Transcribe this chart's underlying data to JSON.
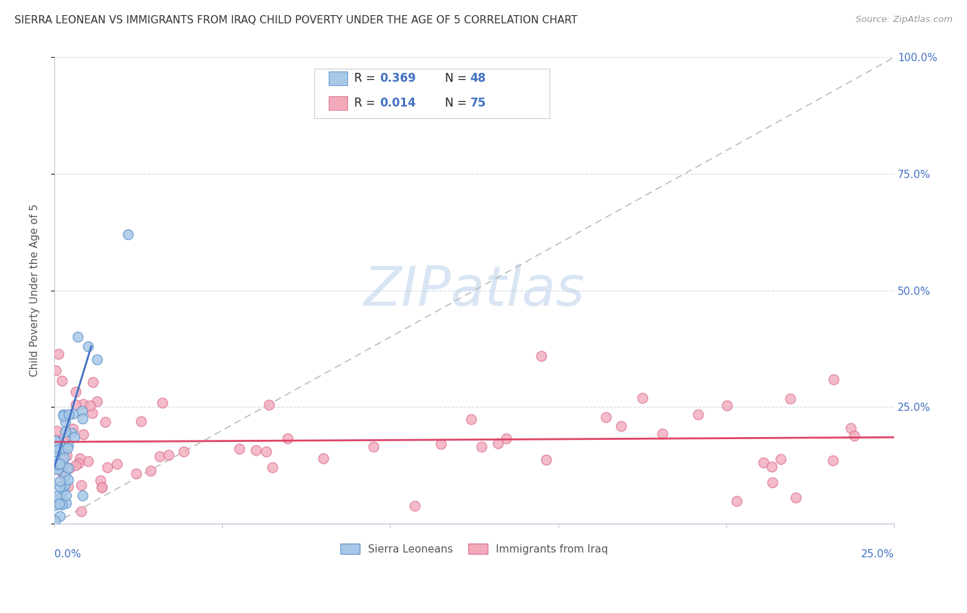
{
  "title": "SIERRA LEONEAN VS IMMIGRANTS FROM IRAQ CHILD POVERTY UNDER THE AGE OF 5 CORRELATION CHART",
  "source": "Source: ZipAtlas.com",
  "ylabel": "Child Poverty Under the Age of 5",
  "ytick_labels": [
    "",
    "25.0%",
    "50.0%",
    "75.0%",
    "100.0%"
  ],
  "xlim": [
    0.0,
    0.25
  ],
  "ylim": [
    0.0,
    1.0
  ],
  "legend_label1": "Sierra Leoneans",
  "legend_label2": "Immigrants from Iraq",
  "color_blue": "#A8C8E8",
  "color_pink": "#F2AABB",
  "color_blue_edge": "#6699CC",
  "color_pink_edge": "#DD7799",
  "color_blue_line": "#4472C4",
  "color_pink_line": "#DD4466",
  "color_legend_text": "#4472C4",
  "watermark": "ZIPatlas",
  "watermark_zip_color": "#C8DCF0",
  "watermark_atlas_color": "#A0C0E0"
}
